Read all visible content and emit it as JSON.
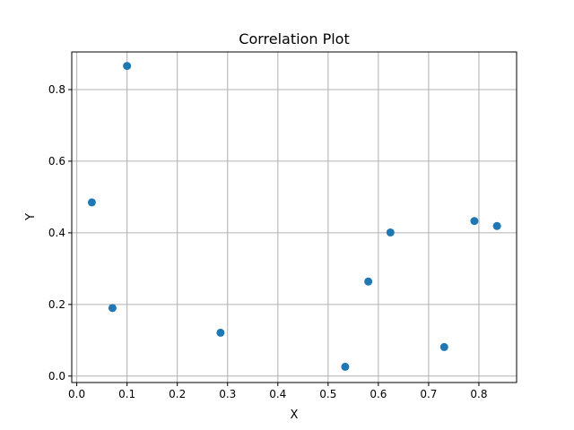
{
  "chart_data": {
    "type": "scatter",
    "title": "Correlation Plot",
    "xlabel": "X",
    "ylabel": "Y",
    "xlim": [
      -0.01,
      0.875
    ],
    "ylim": [
      -0.018,
      0.905
    ],
    "xticks": [
      0.0,
      0.1,
      0.2,
      0.3,
      0.4,
      0.5,
      0.6,
      0.7,
      0.8
    ],
    "xtick_labels": [
      "0.0",
      "0.1",
      "0.2",
      "0.3",
      "0.4",
      "0.5",
      "0.6",
      "0.7",
      "0.8"
    ],
    "yticks": [
      0.0,
      0.2,
      0.4,
      0.6,
      0.8
    ],
    "ytick_labels": [
      "0.0",
      "0.2",
      "0.4",
      "0.6",
      "0.8"
    ],
    "grid": true,
    "marker_color": "#1f77b4",
    "points": [
      {
        "x": 0.1,
        "y": 0.866
      },
      {
        "x": 0.03,
        "y": 0.485
      },
      {
        "x": 0.071,
        "y": 0.19
      },
      {
        "x": 0.286,
        "y": 0.121
      },
      {
        "x": 0.534,
        "y": 0.026
      },
      {
        "x": 0.58,
        "y": 0.264
      },
      {
        "x": 0.624,
        "y": 0.401
      },
      {
        "x": 0.731,
        "y": 0.081
      },
      {
        "x": 0.791,
        "y": 0.433
      },
      {
        "x": 0.836,
        "y": 0.419
      }
    ]
  }
}
